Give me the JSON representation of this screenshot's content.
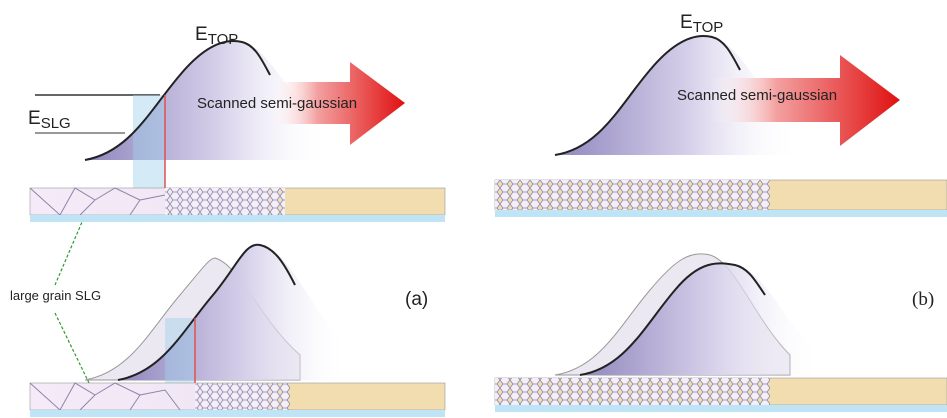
{
  "panels": [
    {
      "label": "(a)",
      "peak_label": {
        "symbol": "E",
        "subscript": "TOP"
      },
      "threshold_label": {
        "symbol": "E",
        "subscript": "SLG"
      },
      "arrow_label": "Scanned semi-gaussian",
      "grain_label": "large grain SLG"
    },
    {
      "label": "(b)",
      "peak_label": {
        "symbol": "E",
        "subscript": "TOP"
      },
      "arrow_label": "Scanned semi-gaussian"
    }
  ]
}
